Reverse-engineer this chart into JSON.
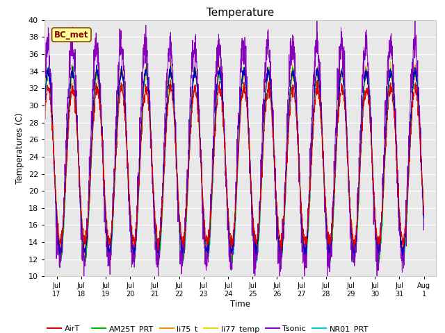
{
  "title": "Temperature",
  "ylabel": "Temperatures (C)",
  "xlabel": "Time",
  "annotation": "BC_met",
  "ylim": [
    10,
    40
  ],
  "series_colors": {
    "AirT": "#dd0000",
    "li75_t": "#0000cc",
    "AM25T_PRT": "#00bb00",
    "li75_t2": "#ff8800",
    "li77_temp": "#dddd00",
    "Tsonic": "#8800bb",
    "NR01_PRT": "#00cccc"
  },
  "legend_entries": [
    {
      "label": "AirT",
      "color": "#dd0000"
    },
    {
      "label": "li75_t",
      "color": "#0000cc"
    },
    {
      "label": "AM25T_PRT",
      "color": "#00bb00"
    },
    {
      "label": "li75_t",
      "color": "#ff8800"
    },
    {
      "label": "li77_temp",
      "color": "#dddd00"
    },
    {
      "label": "Tsonic",
      "color": "#8800bb"
    },
    {
      "label": "NR01_PRT",
      "color": "#00cccc"
    }
  ],
  "xtick_labels": [
    "Jul\n17",
    "Jul\n18",
    "Jul\n19",
    "Jul\n20",
    "Jul\n21",
    "Jul\n22",
    "Jul\n23",
    "Jul\n24",
    "Jul\n25",
    "Jul\n26",
    "Jul\n27",
    "Jul\n28",
    "Jul\n29",
    "Jul\n30",
    "Jul\n31",
    "Aug\n1"
  ],
  "ytick_vals": [
    10,
    12,
    14,
    16,
    18,
    20,
    22,
    24,
    26,
    28,
    30,
    32,
    34,
    36,
    38,
    40
  ],
  "bg_color": "#e8e8e8",
  "fig_bg": "#ffffff",
  "series_params": {
    "AirT": {
      "base_min": 14,
      "base_max": 32,
      "phase": 0.0,
      "noise": 0.4,
      "seed": 1
    },
    "li75_t": {
      "base_min": 13,
      "base_max": 34,
      "phase": 0.05,
      "noise": 0.3,
      "seed": 2
    },
    "AM25T_PRT": {
      "base_min": 12,
      "base_max": 34,
      "phase": 0.03,
      "noise": 0.3,
      "seed": 3
    },
    "li75_t2": {
      "base_min": 13,
      "base_max": 34,
      "phase": 0.04,
      "noise": 0.4,
      "seed": 4
    },
    "li77_temp": {
      "base_min": 13,
      "base_max": 34,
      "phase": 0.04,
      "noise": 0.4,
      "seed": 5
    },
    "Tsonic": {
      "base_min": 12,
      "base_max": 37,
      "phase": 0.15,
      "noise": 1.2,
      "seed": 6
    },
    "NR01_PRT": {
      "base_min": 12,
      "base_max": 34,
      "phase": 0.0,
      "noise": 0.3,
      "seed": 7
    }
  }
}
